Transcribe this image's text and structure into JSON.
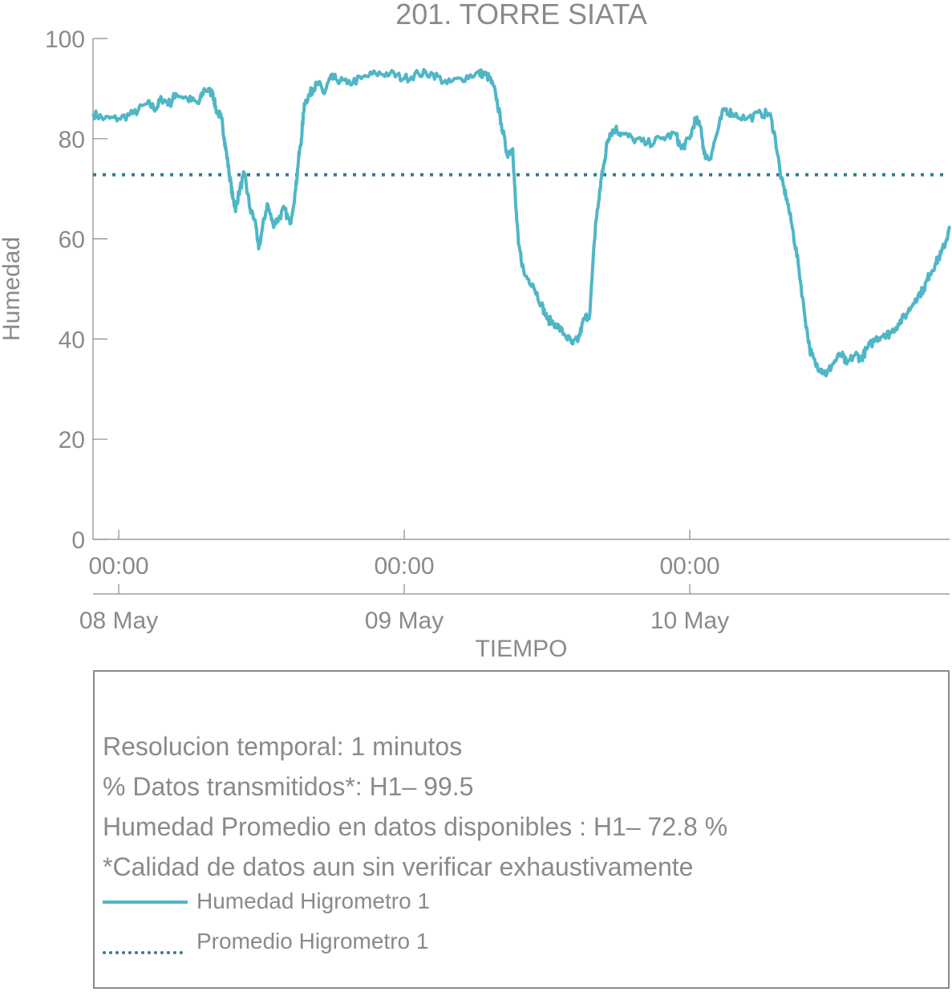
{
  "chart_data": {
    "type": "line",
    "title": "201. TORRE SIATA",
    "xlabel": "TIEMPO",
    "ylabel": "Humedad",
    "ylim": [
      0,
      100
    ],
    "yticks": [
      0,
      20,
      40,
      60,
      80,
      100
    ],
    "xlim": [
      -0.09,
      2.91
    ],
    "xticks": [
      0,
      1,
      2
    ],
    "xtick_time_labels": [
      "00:00",
      "00:00",
      "00:00"
    ],
    "xtick_date_labels": [
      "08 May",
      "09 May",
      "10 May"
    ],
    "grid": false,
    "series": [
      {
        "name": "Humedad Higrometro 1",
        "style": "solid",
        "color": "#4fb6c6",
        "x_unit": "days since 08 May 00:00",
        "x": [
          -0.09,
          -0.05,
          0.0,
          0.05,
          0.1,
          0.13,
          0.15,
          0.18,
          0.2,
          0.24,
          0.28,
          0.3,
          0.33,
          0.34,
          0.36,
          0.37,
          0.38,
          0.39,
          0.4,
          0.41,
          0.42,
          0.44,
          0.46,
          0.48,
          0.49,
          0.5,
          0.52,
          0.54,
          0.56,
          0.58,
          0.6,
          0.62,
          0.63,
          0.64,
          0.65,
          0.67,
          0.68,
          0.7,
          0.72,
          0.74,
          0.76,
          0.8,
          0.85,
          0.9,
          0.95,
          1.0,
          1.05,
          1.1,
          1.15,
          1.2,
          1.25,
          1.28,
          1.3,
          1.32,
          1.34,
          1.36,
          1.38,
          1.39,
          1.4,
          1.42,
          1.45,
          1.48,
          1.5,
          1.53,
          1.56,
          1.59,
          1.61,
          1.63,
          1.65,
          1.67,
          1.68,
          1.69,
          1.7,
          1.71,
          1.72,
          1.74,
          1.76,
          1.8,
          1.85,
          1.9,
          1.95,
          1.97,
          2.0,
          2.02,
          2.04,
          2.05,
          2.07,
          2.1,
          2.12,
          2.15,
          2.2,
          2.25,
          2.28,
          2.3,
          2.32,
          2.34,
          2.36,
          2.38,
          2.4,
          2.42,
          2.44,
          2.46,
          2.48,
          2.5,
          2.53,
          2.55,
          2.58,
          2.6,
          2.62,
          2.65,
          2.68,
          2.7,
          2.73,
          2.76,
          2.79,
          2.82,
          2.84,
          2.86,
          2.88,
          2.9,
          2.91
        ],
        "y": [
          85,
          84,
          84,
          85,
          87,
          86,
          88,
          87,
          89,
          88,
          87,
          90,
          89,
          86,
          84,
          80,
          76,
          72,
          68,
          66,
          69,
          73,
          66,
          63,
          58,
          61,
          67,
          63,
          64,
          66,
          63,
          70,
          76,
          80,
          87,
          89,
          90,
          91,
          89,
          92,
          92,
          91,
          92,
          93,
          93,
          92,
          93,
          93,
          91,
          92,
          93,
          93,
          92,
          89,
          83,
          77,
          78,
          67,
          59,
          53,
          51,
          47,
          44,
          43,
          41,
          39,
          40,
          44,
          45,
          63,
          67,
          72,
          75,
          79,
          81,
          82,
          81,
          80,
          79,
          80,
          81,
          78,
          80,
          84,
          82,
          77,
          76,
          82,
          86,
          85,
          84,
          85,
          85,
          80,
          72,
          68,
          62,
          55,
          46,
          38,
          35,
          34,
          33,
          35,
          37,
          35,
          37,
          36,
          38,
          40,
          41,
          41,
          43,
          45,
          48,
          50,
          53,
          55,
          57,
          60,
          62
        ]
      },
      {
        "name": "Promedio Higrometro 1",
        "style": "dotted",
        "color": "#2d7e93",
        "y_const": 72.8
      }
    ],
    "legend_position": "bottom"
  },
  "info": {
    "line1": "Resolucion temporal: 1 minutos",
    "line2": "% Datos transmitidos*: H1– 99.5",
    "line3": "Humedad Promedio en datos disponibles : H1– 72.8 %",
    "line4": "*Calidad de datos aun sin verificar exhaustivamente"
  },
  "legend": {
    "solid_label": "Humedad Higrometro 1",
    "dotted_label": "Promedio Higrometro 1"
  }
}
